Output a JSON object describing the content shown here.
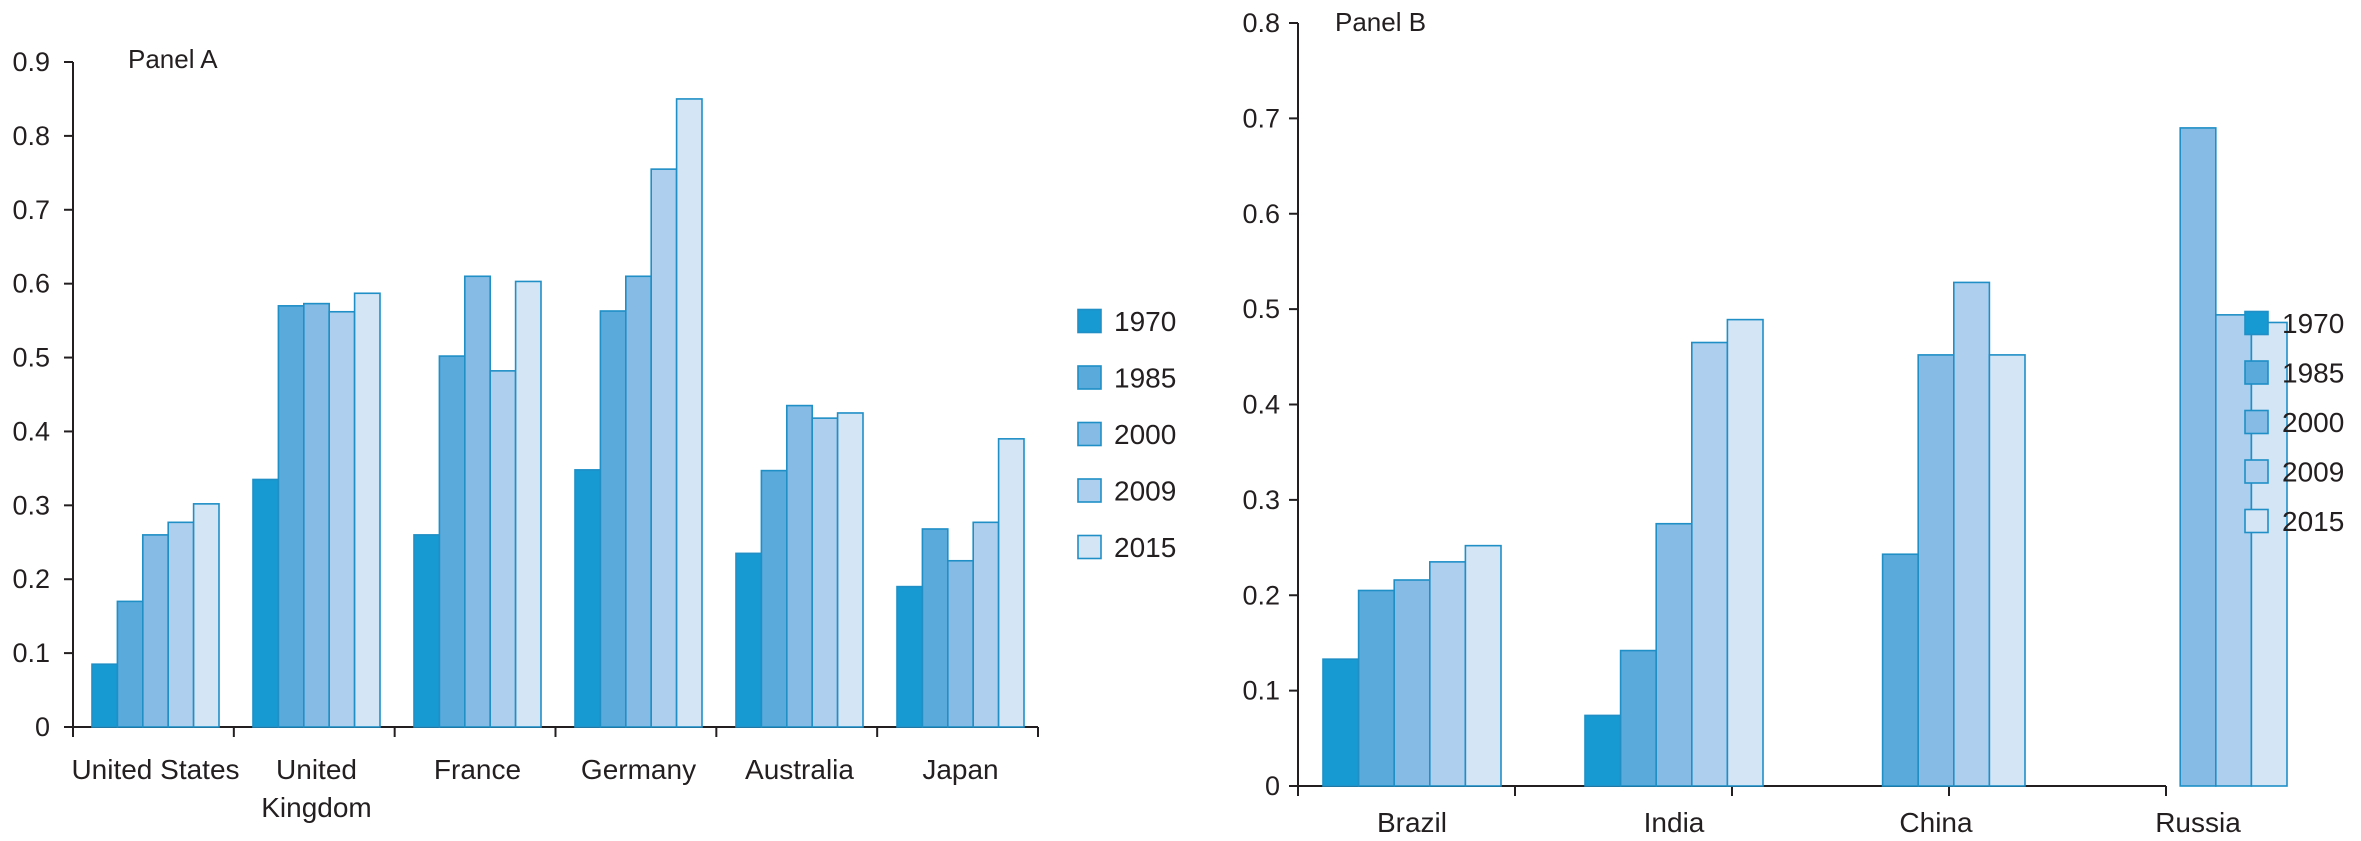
{
  "colors": {
    "1970": "#1799d1",
    "1985": "#5aaadb",
    "2000": "#85bbe4",
    "2009": "#aecfee",
    "2015": "#d4e5f6",
    "bar_stroke": "#1f8fc6",
    "axis": "#231f20"
  },
  "chart_data": [
    {
      "type": "bar",
      "title": "Panel A",
      "categories": [
        "United States",
        "United Kingdom",
        "France",
        "Germany",
        "Australia",
        "Japan"
      ],
      "category_label_lines": [
        [
          "United States"
        ],
        [
          "United",
          "Kingdom"
        ],
        [
          "France"
        ],
        [
          "Germany"
        ],
        [
          "Australia"
        ],
        [
          "Japan"
        ]
      ],
      "series": [
        {
          "name": "1970",
          "values": [
            0.085,
            0.335,
            0.26,
            0.348,
            0.235,
            0.19
          ]
        },
        {
          "name": "1985",
          "values": [
            0.17,
            0.57,
            0.502,
            0.563,
            0.347,
            0.268
          ]
        },
        {
          "name": "2000",
          "values": [
            0.26,
            0.573,
            0.61,
            0.61,
            0.435,
            0.225
          ]
        },
        {
          "name": "2009",
          "values": [
            0.277,
            0.562,
            0.482,
            0.755,
            0.418,
            0.277
          ]
        },
        {
          "name": "2015",
          "values": [
            0.302,
            0.587,
            0.603,
            0.85,
            0.425,
            0.39
          ]
        }
      ],
      "ylim": [
        0,
        0.9
      ],
      "yticks": [
        "0",
        "0.1",
        "0.2",
        "0.3",
        "0.4",
        "0.5",
        "0.6",
        "0.7",
        "0.8",
        "0.9"
      ],
      "xlabel": "",
      "ylabel": "",
      "grid": false,
      "legend": "right"
    },
    {
      "type": "bar",
      "title": "Panel B",
      "categories": [
        "Brazil",
        "India",
        "China",
        "Russia"
      ],
      "category_label_lines": [
        [
          "Brazil"
        ],
        [
          "India"
        ],
        [
          "China"
        ],
        [
          "Russia"
        ]
      ],
      "series": [
        {
          "name": "1970",
          "values": [
            0.133,
            0.074,
            null,
            null
          ]
        },
        {
          "name": "1985",
          "values": [
            0.205,
            0.142,
            0.243,
            null
          ]
        },
        {
          "name": "2000",
          "values": [
            0.216,
            0.275,
            0.452,
            0.69
          ]
        },
        {
          "name": "2009",
          "values": [
            0.235,
            0.465,
            0.528,
            0.494
          ]
        },
        {
          "name": "2015",
          "values": [
            0.252,
            0.489,
            0.452,
            0.486
          ]
        }
      ],
      "ylim": [
        0,
        0.8
      ],
      "yticks": [
        "0",
        "0.1",
        "0.2",
        "0.3",
        "0.4",
        "0.5",
        "0.6",
        "0.7",
        "0.8"
      ],
      "xlabel": "",
      "ylabel": "",
      "grid": false,
      "legend": "right"
    }
  ]
}
